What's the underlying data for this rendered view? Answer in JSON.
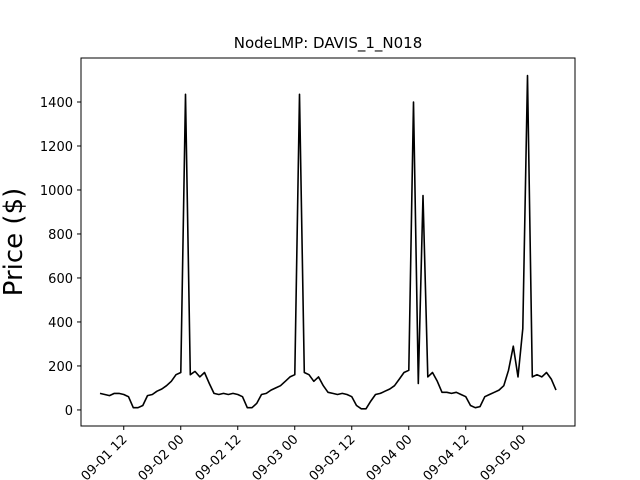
{
  "chart_data": {
    "type": "line",
    "title": "NodeLMP: DAVIS_1_N018",
    "y_label": "Price ($)",
    "x": [
      "09-01 07",
      "09-01 08",
      "09-01 09",
      "09-01 10",
      "09-01 11",
      "09-01 12",
      "09-01 13",
      "09-01 14",
      "09-01 15",
      "09-01 16",
      "09-01 17",
      "09-01 18",
      "09-01 19",
      "09-01 20",
      "09-01 21",
      "09-01 22",
      "09-01 23",
      "09-02 00",
      "09-02 01",
      "09-02 02",
      "09-02 03",
      "09-02 04",
      "09-02 05",
      "09-02 06",
      "09-02 07",
      "09-02 08",
      "09-02 09",
      "09-02 10",
      "09-02 11",
      "09-02 12",
      "09-02 13",
      "09-02 14",
      "09-02 15",
      "09-02 16",
      "09-02 17",
      "09-02 18",
      "09-02 19",
      "09-02 20",
      "09-02 21",
      "09-02 22",
      "09-02 23",
      "09-03 00",
      "09-03 01",
      "09-03 02",
      "09-03 03",
      "09-03 04",
      "09-03 05",
      "09-03 06",
      "09-03 07",
      "09-03 08",
      "09-03 09",
      "09-03 10",
      "09-03 11",
      "09-03 12",
      "09-03 13",
      "09-03 14",
      "09-03 15",
      "09-03 16",
      "09-03 17",
      "09-03 18",
      "09-03 19",
      "09-03 20",
      "09-03 21",
      "09-03 22",
      "09-03 23",
      "09-04 00",
      "09-04 01",
      "09-04 02",
      "09-04 03",
      "09-04 04",
      "09-04 05",
      "09-04 06",
      "09-04 07",
      "09-04 08",
      "09-04 09",
      "09-04 10",
      "09-04 11",
      "09-04 12",
      "09-04 13",
      "09-04 14",
      "09-04 15",
      "09-04 16",
      "09-04 17",
      "09-04 18",
      "09-04 19",
      "09-04 20",
      "09-04 21",
      "09-04 22",
      "09-04 23",
      "09-05 00",
      "09-05 01",
      "09-05 02",
      "09-05 03",
      "09-05 04",
      "09-05 05",
      "09-05 06",
      "09-05 07"
    ],
    "series": [
      {
        "name": "NodeLMP",
        "color": "#000000",
        "values": [
          75,
          70,
          65,
          75,
          75,
          70,
          60,
          10,
          10,
          20,
          65,
          70,
          85,
          95,
          110,
          130,
          160,
          170,
          1435,
          160,
          175,
          150,
          170,
          120,
          75,
          70,
          75,
          70,
          75,
          70,
          60,
          10,
          10,
          30,
          70,
          75,
          90,
          100,
          110,
          130,
          150,
          160,
          1435,
          170,
          160,
          130,
          150,
          110,
          80,
          75,
          70,
          75,
          70,
          60,
          20,
          5,
          5,
          40,
          70,
          75,
          85,
          95,
          110,
          140,
          170,
          180,
          1400,
          120,
          975,
          150,
          170,
          130,
          80,
          80,
          75,
          80,
          70,
          60,
          20,
          10,
          15,
          60,
          70,
          80,
          90,
          110,
          180,
          290,
          150,
          370,
          1520,
          150,
          160,
          150,
          170,
          140,
          90
        ]
      }
    ],
    "xlim": [
      "09-01 03",
      "09-05 11"
    ],
    "xticks": [
      "09-01 12",
      "09-02 00",
      "09-02 12",
      "09-03 00",
      "09-03 12",
      "09-04 00",
      "09-04 12",
      "09-05 00"
    ],
    "ylim": [
      -73,
      1600
    ],
    "yticks": [
      0,
      200,
      400,
      600,
      800,
      1000,
      1200,
      1400
    ],
    "grid": false
  }
}
